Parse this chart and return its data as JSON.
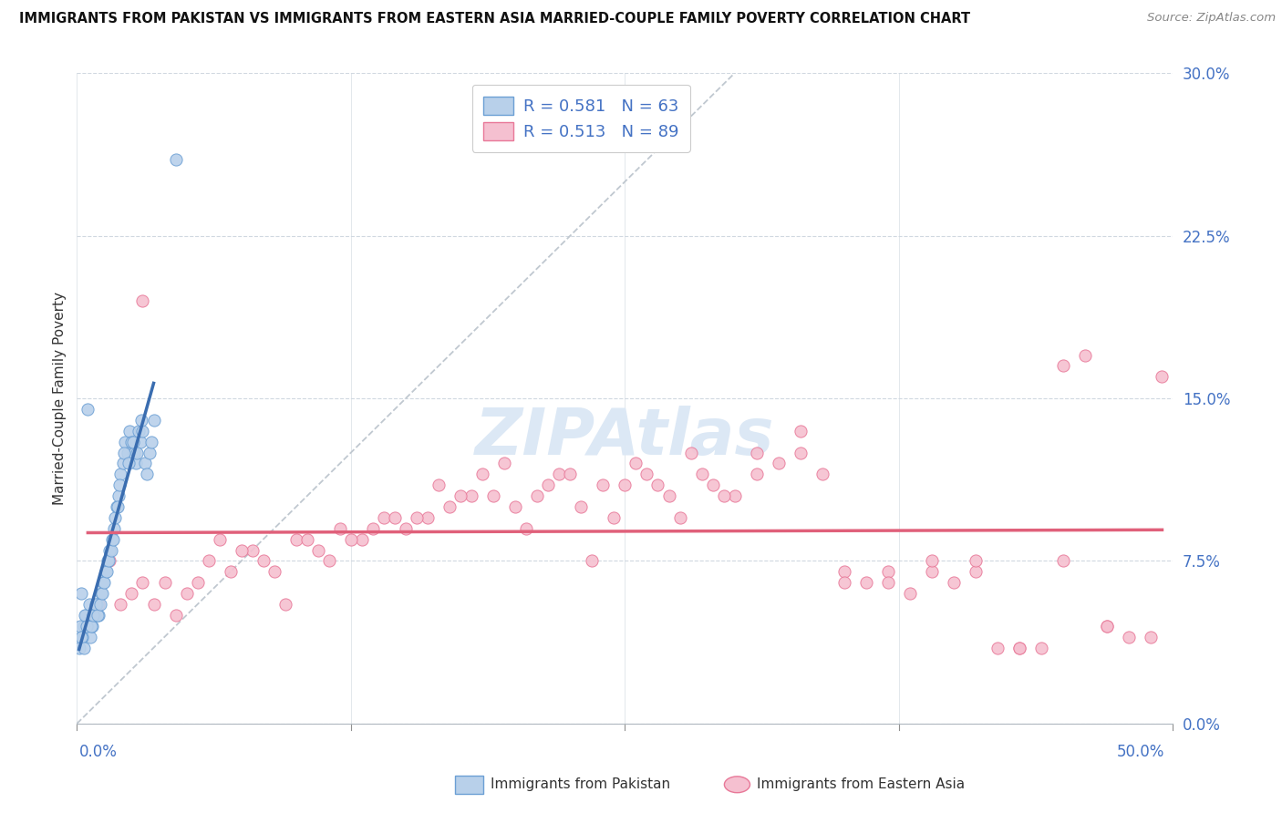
{
  "title": "IMMIGRANTS FROM PAKISTAN VS IMMIGRANTS FROM EASTERN ASIA MARRIED-COUPLE FAMILY POVERTY CORRELATION CHART",
  "source": "Source: ZipAtlas.com",
  "ylabel": "Married-Couple Family Poverty",
  "ytick_labels": [
    "0.0%",
    "7.5%",
    "15.0%",
    "22.5%",
    "30.0%"
  ],
  "ytick_values": [
    0.0,
    7.5,
    15.0,
    22.5,
    30.0
  ],
  "xlim": [
    0.0,
    50.0
  ],
  "ylim": [
    0.0,
    30.0
  ],
  "pakistan_R": 0.581,
  "pakistan_N": 63,
  "eastern_asia_R": 0.513,
  "eastern_asia_N": 89,
  "pakistan_color": "#b8d0ea",
  "pakistan_edge_color": "#6b9fd4",
  "pakistan_line_color": "#3a6db0",
  "eastern_asia_color": "#f5c0d0",
  "eastern_asia_edge_color": "#e87898",
  "eastern_asia_line_color": "#e0607a",
  "watermark_color": "#dce8f5",
  "grid_color": "#d0d8e0",
  "pakistan_scatter_x": [
    0.2,
    0.3,
    0.4,
    0.5,
    0.6,
    0.7,
    0.8,
    0.9,
    1.0,
    1.1,
    1.2,
    1.3,
    1.4,
    1.5,
    1.6,
    1.7,
    1.8,
    1.9,
    2.0,
    2.1,
    2.2,
    2.3,
    2.4,
    2.5,
    2.6,
    2.7,
    2.8,
    2.9,
    3.0,
    3.1,
    3.2,
    3.3,
    3.4,
    3.5,
    0.15,
    0.25,
    0.35,
    0.45,
    0.55,
    0.65,
    0.75,
    0.85,
    0.95,
    1.05,
    1.15,
    1.25,
    1.35,
    1.45,
    1.55,
    1.65,
    1.75,
    1.85,
    1.95,
    2.15,
    2.35,
    2.55,
    2.75,
    2.95,
    0.1,
    0.2,
    0.3,
    4.5,
    0.5
  ],
  "pakistan_scatter_y": [
    6.0,
    4.5,
    5.0,
    4.5,
    4.0,
    4.5,
    5.0,
    5.5,
    5.0,
    6.0,
    6.5,
    7.0,
    7.5,
    8.0,
    8.5,
    9.0,
    10.0,
    10.5,
    11.5,
    12.0,
    13.0,
    12.5,
    13.5,
    13.0,
    12.5,
    12.0,
    13.5,
    13.0,
    13.5,
    12.0,
    11.5,
    12.5,
    13.0,
    14.0,
    4.5,
    4.0,
    5.0,
    4.5,
    5.5,
    4.5,
    5.0,
    5.5,
    5.0,
    5.5,
    6.0,
    6.5,
    7.0,
    7.5,
    8.0,
    8.5,
    9.5,
    10.0,
    11.0,
    12.5,
    12.0,
    13.0,
    12.5,
    14.0,
    3.5,
    4.0,
    3.5,
    26.0,
    14.5
  ],
  "eastern_asia_scatter_x": [
    1.0,
    2.0,
    3.0,
    4.0,
    5.0,
    6.0,
    7.0,
    8.0,
    9.0,
    10.0,
    11.0,
    12.0,
    13.0,
    14.0,
    15.0,
    16.0,
    17.0,
    18.0,
    19.0,
    20.0,
    21.0,
    22.0,
    23.0,
    24.0,
    25.0,
    26.0,
    27.0,
    28.0,
    29.0,
    30.0,
    31.0,
    32.0,
    33.0,
    34.0,
    35.0,
    36.0,
    37.0,
    38.0,
    39.0,
    40.0,
    41.0,
    42.0,
    43.0,
    44.0,
    45.0,
    46.0,
    47.0,
    48.0,
    49.0,
    1.5,
    2.5,
    3.5,
    4.5,
    5.5,
    6.5,
    7.5,
    8.5,
    9.5,
    10.5,
    11.5,
    12.5,
    13.5,
    14.5,
    15.5,
    16.5,
    17.5,
    18.5,
    19.5,
    20.5,
    21.5,
    22.5,
    23.5,
    24.5,
    25.5,
    26.5,
    27.5,
    28.5,
    29.5,
    31.0,
    33.0,
    35.0,
    37.0,
    39.0,
    41.0,
    43.0,
    45.0,
    47.0,
    49.5,
    3.0
  ],
  "eastern_asia_scatter_y": [
    5.5,
    5.5,
    6.5,
    6.5,
    6.0,
    7.5,
    7.0,
    8.0,
    7.0,
    8.5,
    8.0,
    9.0,
    8.5,
    9.5,
    9.0,
    9.5,
    10.0,
    10.5,
    10.5,
    10.0,
    10.5,
    11.5,
    10.0,
    11.0,
    11.0,
    11.5,
    10.5,
    12.5,
    11.0,
    10.5,
    11.5,
    12.0,
    12.5,
    11.5,
    7.0,
    6.5,
    7.0,
    6.0,
    7.0,
    6.5,
    7.0,
    3.5,
    3.5,
    3.5,
    16.5,
    17.0,
    4.5,
    4.0,
    4.0,
    7.5,
    6.0,
    5.5,
    5.0,
    6.5,
    8.5,
    8.0,
    7.5,
    5.5,
    8.5,
    7.5,
    8.5,
    9.0,
    9.5,
    9.5,
    11.0,
    10.5,
    11.5,
    12.0,
    9.0,
    11.0,
    11.5,
    7.5,
    9.5,
    12.0,
    11.0,
    9.5,
    11.5,
    10.5,
    12.5,
    13.5,
    6.5,
    6.5,
    7.5,
    7.5,
    3.5,
    7.5,
    4.5,
    16.0,
    19.5
  ],
  "pakistan_line_x0": 0.1,
  "pakistan_line_x1": 3.5,
  "eastern_asia_line_x0": 0.5,
  "eastern_asia_line_x1": 49.5,
  "diag_line_x0": 0.0,
  "diag_line_x1": 30.0,
  "diag_line_y0": 0.0,
  "diag_line_y1": 30.0
}
